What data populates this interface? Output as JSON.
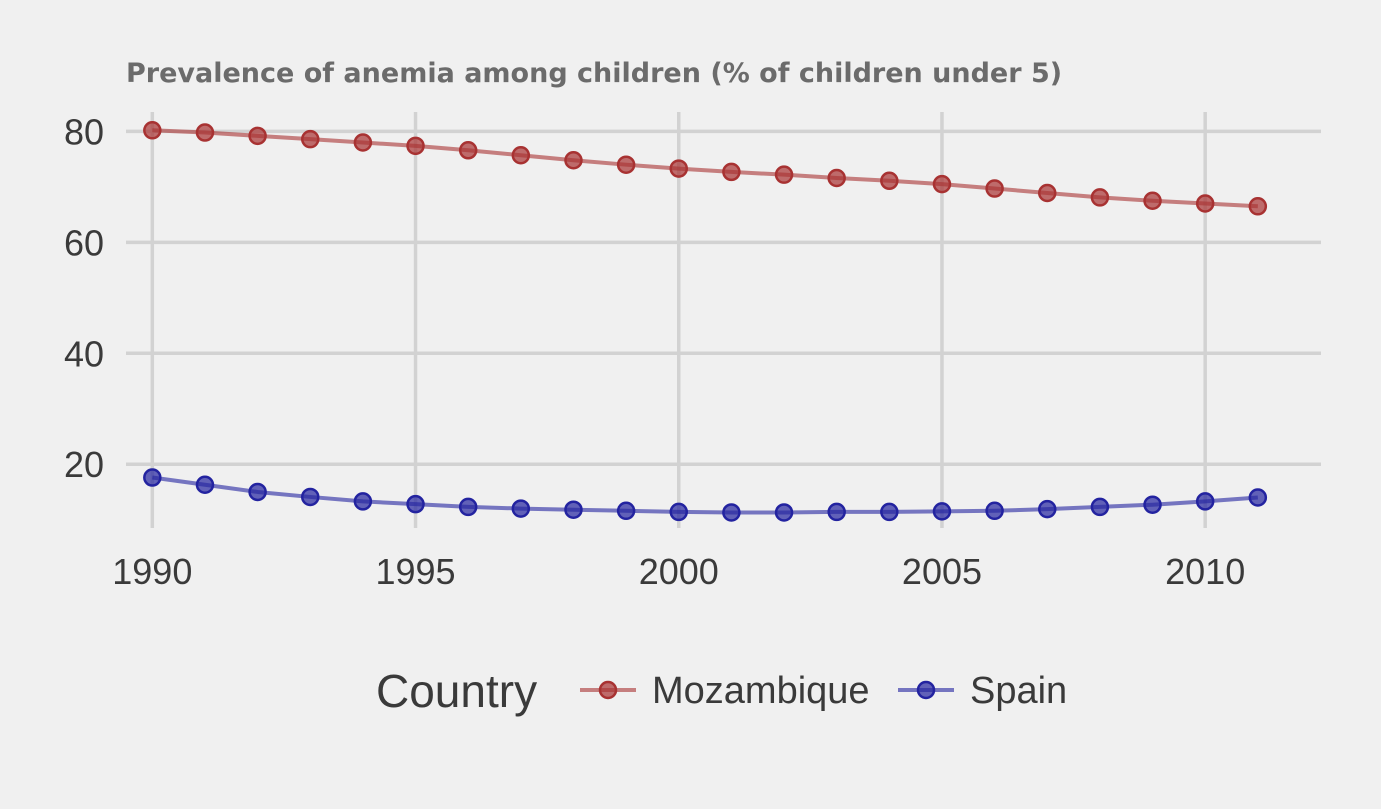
{
  "chart_data": {
    "type": "line",
    "title": "Prevalence of anemia among children (% of children under 5)",
    "x": [
      1990,
      1991,
      1992,
      1993,
      1994,
      1995,
      1996,
      1997,
      1998,
      1999,
      2000,
      2001,
      2002,
      2003,
      2004,
      2005,
      2006,
      2007,
      2008,
      2009,
      2010,
      2011
    ],
    "series": [
      {
        "name": "Mozambique",
        "color": "#a83232",
        "values": [
          80.2,
          79.8,
          79.2,
          78.6,
          78.0,
          77.4,
          76.6,
          75.7,
          74.8,
          74.0,
          73.3,
          72.7,
          72.2,
          71.6,
          71.1,
          70.5,
          69.7,
          68.9,
          68.1,
          67.5,
          67.0,
          66.5
        ]
      },
      {
        "name": "Spain",
        "color": "#2323a0",
        "values": [
          17.6,
          16.3,
          15.0,
          14.1,
          13.3,
          12.8,
          12.3,
          12.0,
          11.8,
          11.6,
          11.4,
          11.3,
          11.3,
          11.4,
          11.4,
          11.5,
          11.6,
          11.9,
          12.3,
          12.7,
          13.3,
          14.0
        ]
      }
    ],
    "xticks": [
      1990,
      1995,
      2000,
      2005,
      2010
    ],
    "xtick_labels": [
      "1990",
      "1995",
      "2000",
      "2005",
      "2010"
    ],
    "yticks": [
      20,
      40,
      60,
      80
    ],
    "ytick_labels": [
      "20",
      "40",
      "60",
      "80"
    ],
    "xlim": [
      1989.5,
      2012.2
    ],
    "ylim": [
      8.5,
      83.5
    ],
    "grid": true,
    "legend": {
      "title": "Country",
      "position": "bottom"
    }
  }
}
